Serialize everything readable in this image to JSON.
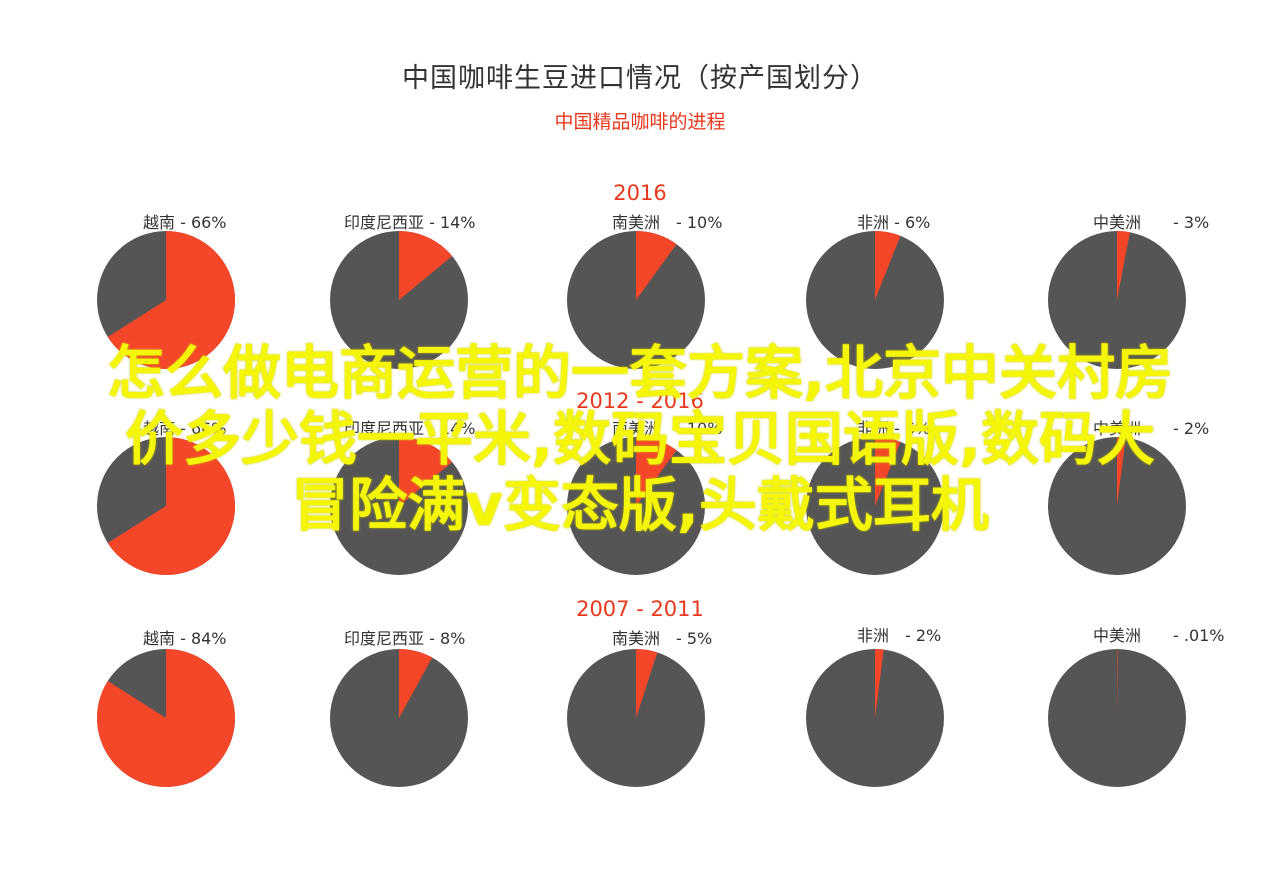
{
  "title": "中国咖啡生豆进口情况（按产国划分）",
  "subtitle": "中国精品咖啡的进程",
  "overlay_text": [
    "怎么做电商运营的一套方案,北京中关村房",
    "价多少钱一平米,数码宝贝国语版,数码大",
    "冒险满v变态版,头戴式耳机"
  ],
  "colors": {
    "highlight": "#f4472a",
    "rest": "#555555",
    "accent_text": "#e8391d"
  },
  "chart_data": [
    {
      "type": "pie",
      "row_title": "2016",
      "slices": [
        {
          "label": "越南 - 66%",
          "country": "越南",
          "value": 66
        },
        {
          "label": "印度尼西亚 - 14%",
          "country": "印度尼西亚",
          "value": 14
        },
        {
          "label": "南美洲　- 10%",
          "country": "南美洲",
          "value": 10
        },
        {
          "label": "非洲 - 6%",
          "country": "非洲",
          "value": 6
        },
        {
          "label": "中美洲　　- 3%",
          "country": "中美洲",
          "value": 3
        }
      ]
    },
    {
      "type": "pie",
      "row_title": "2012 - 2016",
      "slices": [
        {
          "label": "越南 - 66%",
          "country": "越南",
          "value": 66
        },
        {
          "label": "印度尼西亚 - 14%",
          "country": "印度尼西亚",
          "value": 14
        },
        {
          "label": "南美洲　- 10%",
          "country": "南美洲",
          "value": 10
        },
        {
          "label": "非洲 - 6%",
          "country": "非洲",
          "value": 6
        },
        {
          "label": "中美洲　　- 2%",
          "country": "中美洲",
          "value": 2
        }
      ]
    },
    {
      "type": "pie",
      "row_title": "2007 - 2011",
      "slices": [
        {
          "label": "越南 - 84%",
          "country": "越南",
          "value": 84
        },
        {
          "label": "印度尼西亚 - 8%",
          "country": "印度尼西亚",
          "value": 8
        },
        {
          "label": "南美洲　- 5%",
          "country": "南美洲",
          "value": 5
        },
        {
          "label": "非洲　- 2%",
          "country": "非洲",
          "value": 2
        },
        {
          "label": "中美洲　　- .01%",
          "country": "中美洲",
          "value": 0.01
        }
      ]
    }
  ]
}
